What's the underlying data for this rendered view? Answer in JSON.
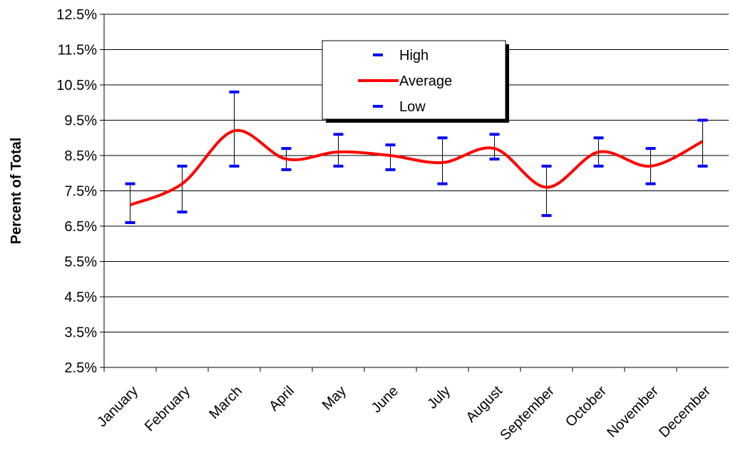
{
  "chart_data": {
    "type": "line",
    "ylabel": "Percent of Total",
    "xlabel": "",
    "title": "",
    "categories": [
      "January",
      "February",
      "March",
      "April",
      "May",
      "June",
      "July",
      "August",
      "September",
      "October",
      "November",
      "December"
    ],
    "series": [
      {
        "name": "High",
        "marker": "dash",
        "color": "#0000ff",
        "values": [
          7.7,
          8.2,
          10.3,
          8.7,
          9.1,
          8.8,
          9.0,
          9.1,
          8.2,
          9.0,
          8.7,
          9.5
        ]
      },
      {
        "name": "Average",
        "marker": "line",
        "color": "#ff0000",
        "values": [
          7.1,
          7.7,
          9.2,
          8.4,
          8.6,
          8.5,
          8.3,
          8.7,
          7.6,
          8.6,
          8.2,
          8.9
        ]
      },
      {
        "name": "Low",
        "marker": "dash",
        "color": "#0000ff",
        "values": [
          6.6,
          6.9,
          8.2,
          8.1,
          8.2,
          8.1,
          7.7,
          8.4,
          6.8,
          8.2,
          7.7,
          8.2
        ]
      }
    ],
    "ylim": [
      2.5,
      12.5
    ],
    "yticks": [
      "2.5%",
      "3.5%",
      "4.5%",
      "5.5%",
      "6.5%",
      "7.5%",
      "8.5%",
      "9.5%",
      "10.5%",
      "11.5%",
      "12.5%"
    ],
    "grid": "horizontal",
    "legend_position": "top-center",
    "error_bar_color": "#000000"
  }
}
